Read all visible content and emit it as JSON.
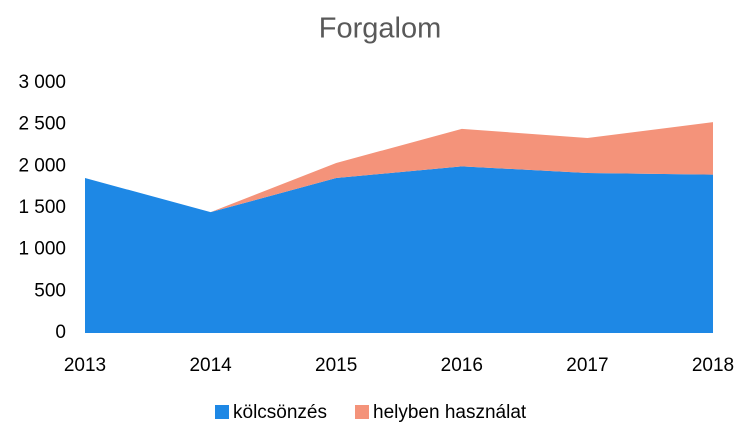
{
  "chart_data": {
    "type": "stacked_area",
    "title": "Forgalom",
    "categories": [
      "2013",
      "2014",
      "2015",
      "2016",
      "2017",
      "2018"
    ],
    "series": [
      {
        "name": "kölcsönzés",
        "color": "#1e88e5",
        "values": [
          1860,
          1450,
          1860,
          2000,
          1920,
          1900
        ]
      },
      {
        "name": "helyben használat",
        "color": "#f4937a",
        "values": [
          0,
          0,
          180,
          450,
          420,
          630
        ]
      }
    ],
    "ylim": [
      0,
      3000
    ],
    "yticks": [
      0,
      500,
      {
        "value": 1000,
        "label": "1 000"
      },
      {
        "value": 1500,
        "label": "1 500"
      },
      {
        "value": 2000,
        "label": "2 000"
      },
      {
        "value": 2500,
        "label": "2 500"
      },
      {
        "value": 3000,
        "label": "3 000"
      }
    ],
    "legend": "bottom"
  }
}
